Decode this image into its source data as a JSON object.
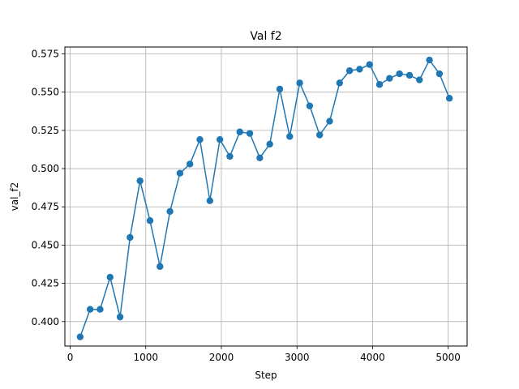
{
  "chart_data": {
    "type": "line",
    "title": "Val f2",
    "xlabel": "Step",
    "ylabel": "val_f2",
    "xlim": [
      -70,
      5250
    ],
    "ylim": [
      0.384,
      0.5795
    ],
    "xticks": [
      0,
      1000,
      2000,
      3000,
      4000,
      5000
    ],
    "yticks": [
      0.4,
      0.425,
      0.45,
      0.475,
      0.5,
      0.525,
      0.55,
      0.575
    ],
    "xtick_labels": [
      "0",
      "1000",
      "2000",
      "3000",
      "4000",
      "5000"
    ],
    "ytick_labels": [
      "0.400",
      "0.425",
      "0.450",
      "0.475",
      "0.500",
      "0.525",
      "0.550",
      "0.575"
    ],
    "grid": true,
    "colors": {
      "line": "#1f77b4",
      "grid": "#b0b0b0"
    },
    "series": [
      {
        "x": [
          132,
          264,
          396,
          528,
          660,
          792,
          924,
          1056,
          1188,
          1320,
          1452,
          1584,
          1716,
          1848,
          1980,
          2112,
          2244,
          2376,
          2508,
          2640,
          2772,
          2904,
          3036,
          3168,
          3300,
          3432,
          3564,
          3696,
          3828,
          3960,
          4092,
          4224,
          4356,
          4488,
          4620,
          4752,
          4884,
          5016
        ],
        "values": [
          0.39,
          0.408,
          0.408,
          0.429,
          0.403,
          0.455,
          0.492,
          0.466,
          0.436,
          0.472,
          0.497,
          0.503,
          0.519,
          0.479,
          0.519,
          0.508,
          0.524,
          0.523,
          0.507,
          0.516,
          0.552,
          0.521,
          0.556,
          0.541,
          0.522,
          0.531,
          0.556,
          0.564,
          0.565,
          0.568,
          0.555,
          0.559,
          0.562,
          0.561,
          0.558,
          0.571,
          0.562,
          0.546
        ]
      }
    ]
  }
}
